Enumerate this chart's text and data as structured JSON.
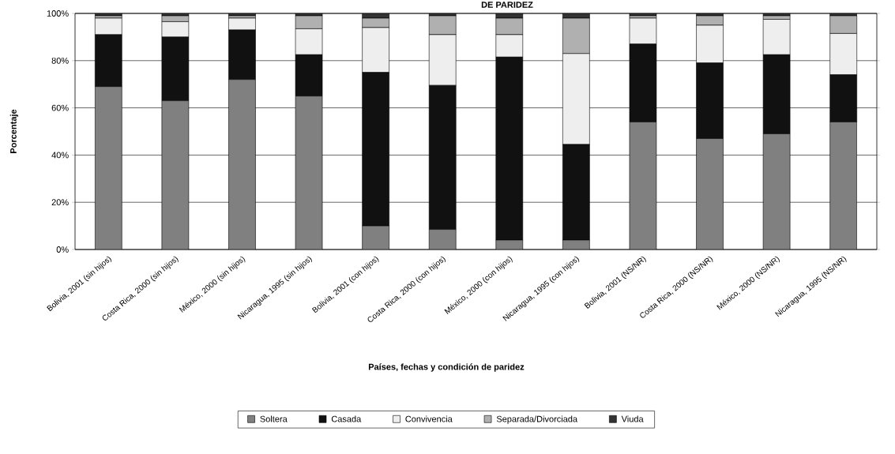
{
  "chart_data": {
    "type": "bar",
    "stacked": true,
    "title": "DE PARIDEZ",
    "xlabel": "Países, fechas y condición de paridez",
    "ylabel": "Porcentaje",
    "categories": [
      "Bolivia, 2001 (sin hijos)",
      "Costa Rica, 2000 (sin hijos)",
      "México, 2000 (sin hijos)",
      "Nicaragua, 1995 (sin hijos)",
      "Bolivia, 2001 (con hijos)",
      "Costa Rica, 2000 (con hijos)",
      "México, 2000 (con hijos)",
      "Nicaragua, 1995 (con hijos)",
      "Bolivia, 2001 (NS/NR)",
      "Costa Rica, 2000 (NS/NR)",
      "México, 2000 (NS/NR)",
      "Nicaragua, 1995 (NS/NR)"
    ],
    "series": [
      {
        "name": "Soltera",
        "color": "#808080",
        "values": [
          69,
          63,
          72,
          65,
          10,
          8.5,
          4,
          4,
          54,
          47,
          49,
          54
        ]
      },
      {
        "name": "Casada",
        "color": "#111111",
        "values": [
          22,
          27,
          21,
          17.5,
          65,
          61,
          77.5,
          40.5,
          33,
          32,
          33.5,
          20
        ]
      },
      {
        "name": "Convivencia",
        "color": "#eeeeee",
        "values": [
          7,
          6.5,
          5,
          11,
          19,
          21.5,
          9.5,
          38.5,
          11,
          16,
          15,
          17.5
        ]
      },
      {
        "name": "Separada/Divorciada",
        "color": "#b0b0b0",
        "values": [
          1,
          2.5,
          1,
          5.5,
          4,
          8,
          7,
          15,
          1,
          4,
          1.5,
          7.5
        ]
      },
      {
        "name": "Viuda",
        "color": "#333333",
        "values": [
          1,
          1,
          1,
          1,
          2,
          1,
          2,
          2,
          1,
          1,
          1,
          1
        ]
      }
    ],
    "ylim": [
      0,
      100
    ],
    "yticks": [
      {
        "value": 0,
        "label": "0%"
      },
      {
        "value": 20,
        "label": "20%"
      },
      {
        "value": 40,
        "label": "40%"
      },
      {
        "value": 60,
        "label": "60%"
      },
      {
        "value": 80,
        "label": "80%"
      },
      {
        "value": 100,
        "label": "100%"
      }
    ],
    "grid": "y",
    "legend": "bottom"
  }
}
